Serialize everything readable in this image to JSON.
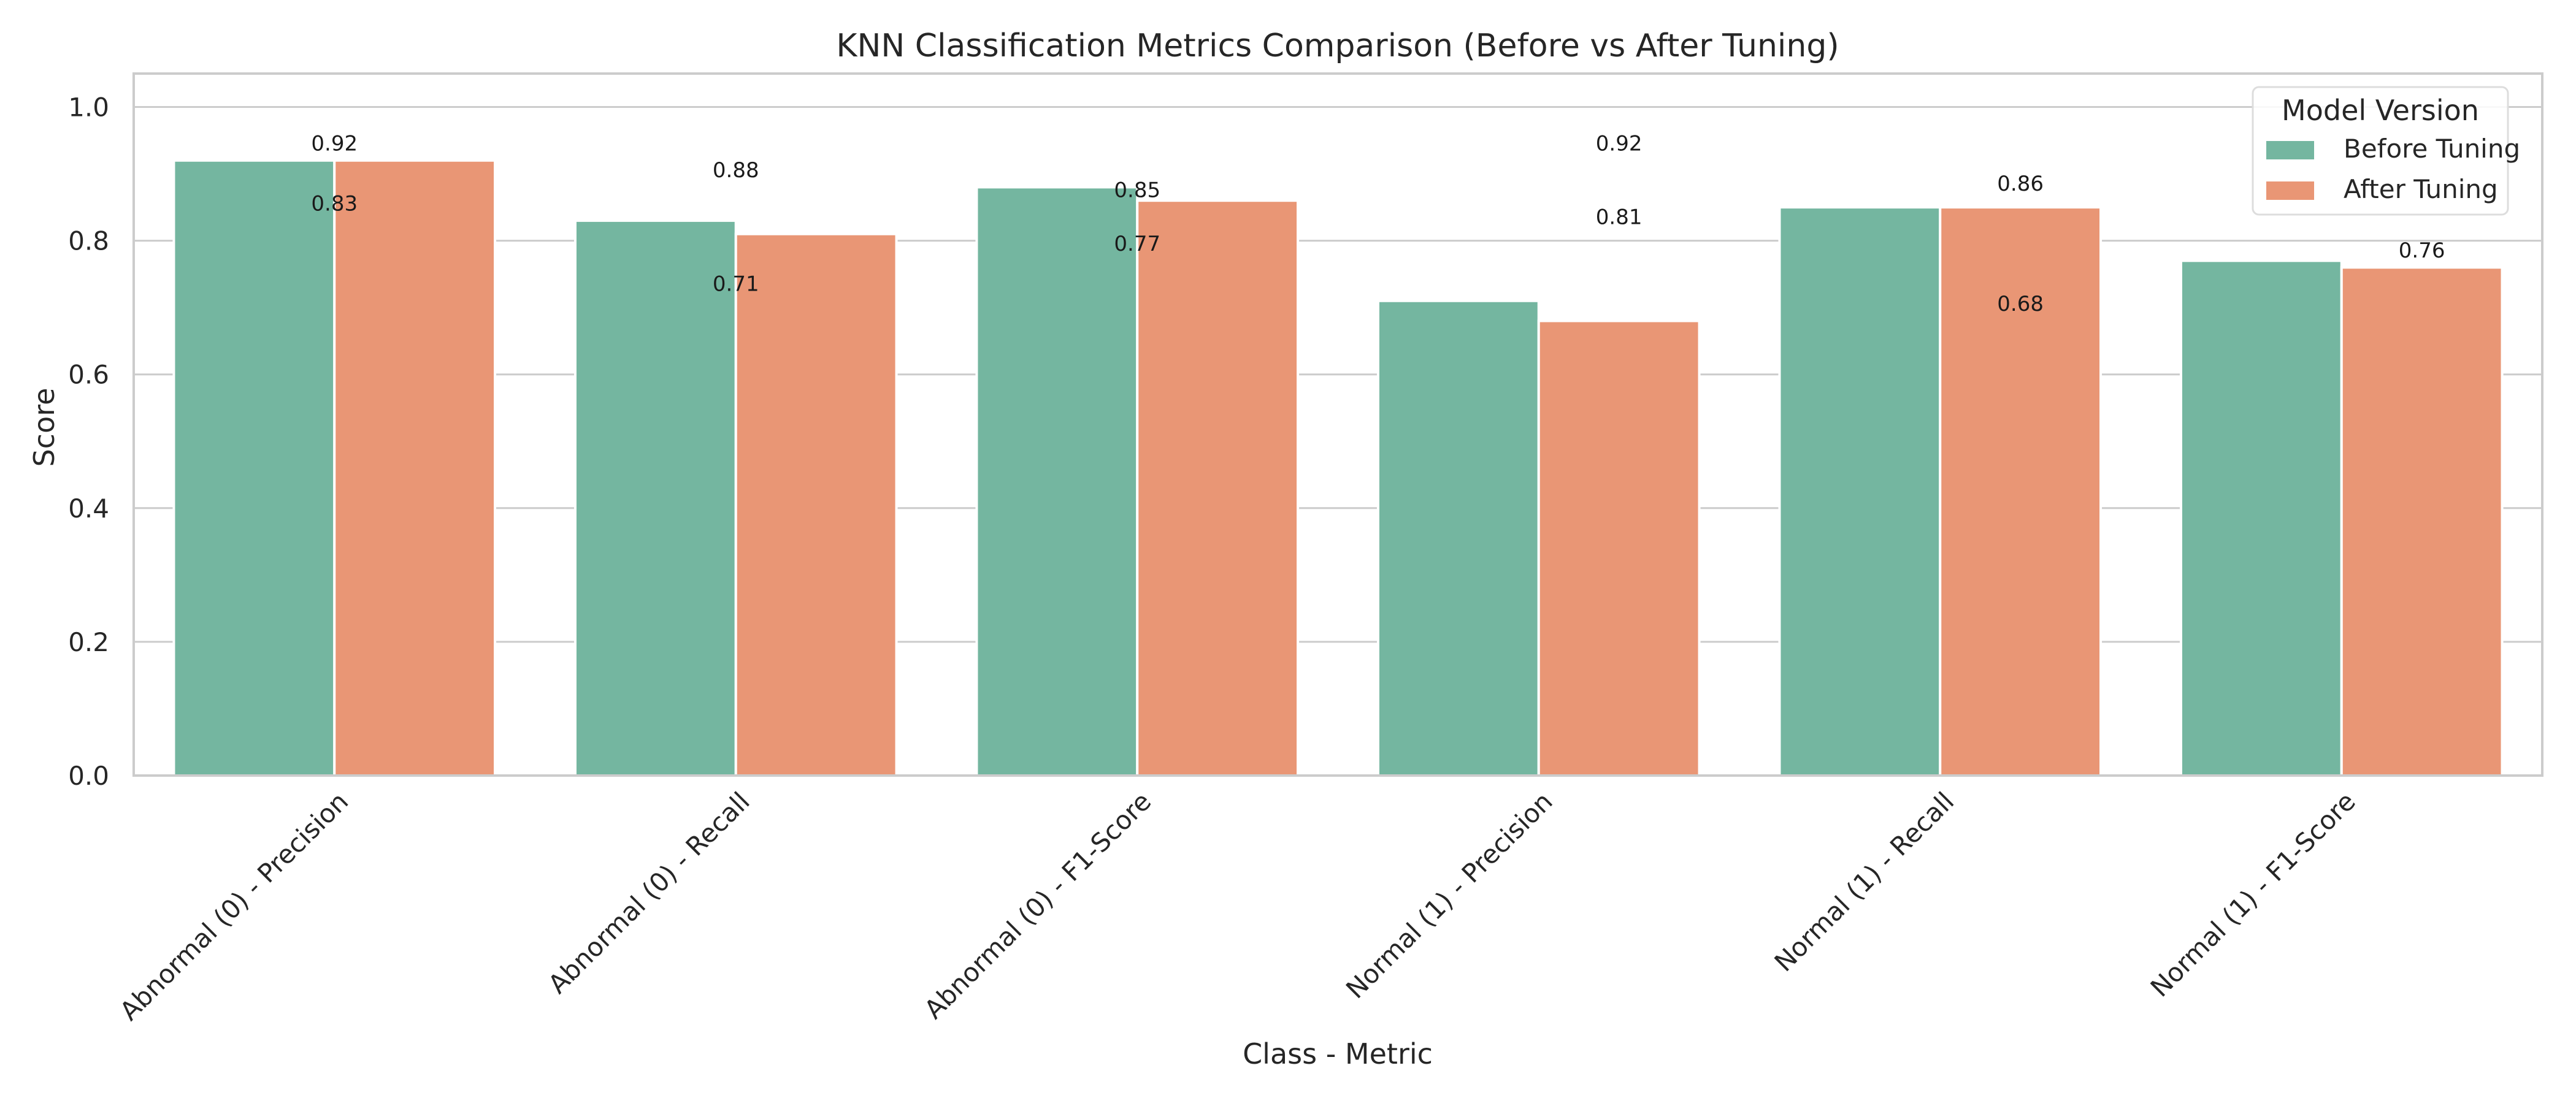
{
  "chart_data": {
    "type": "bar",
    "title": "KNN Classification Metrics Comparison (Before vs After Tuning)",
    "xlabel": "Class - Metric",
    "ylabel": "Score",
    "ylim": [
      0,
      1.05
    ],
    "yticks": [
      0.0,
      0.2,
      0.4,
      0.6,
      0.8,
      1.0
    ],
    "ytick_labels": [
      "0.0",
      "0.2",
      "0.4",
      "0.6",
      "0.8",
      "1.0"
    ],
    "grid": true,
    "legend": {
      "title": "Model Version",
      "placement": "top-right"
    },
    "categories": [
      "Abnormal (0) - Precision",
      "Abnormal (0) - Recall",
      "Abnormal (0) - F1-Score",
      "Normal (1) - Precision",
      "Normal (1) - Recall",
      "Normal (1) - F1-Score"
    ],
    "series": [
      {
        "name": "Before Tuning",
        "color": "#74b6a0",
        "values": [
          0.92,
          0.83,
          0.88,
          0.71,
          0.85,
          0.77
        ]
      },
      {
        "name": "After Tuning",
        "color": "#e99675",
        "values": [
          0.92,
          0.81,
          0.86,
          0.68,
          0.85,
          0.76
        ]
      }
    ],
    "annotations": [
      {
        "text": "0.92",
        "x": 0,
        "y": 0.935
      },
      {
        "text": "0.83",
        "x": 0,
        "y": 0.845
      },
      {
        "text": "0.88",
        "x": 1,
        "y": 0.895
      },
      {
        "text": "0.71",
        "x": 1,
        "y": 0.725
      },
      {
        "text": "0.85",
        "x": 2,
        "y": 0.865
      },
      {
        "text": "0.77",
        "x": 2,
        "y": 0.785
      },
      {
        "text": "0.92",
        "x": 3.2,
        "y": 0.935
      },
      {
        "text": "0.81",
        "x": 3.2,
        "y": 0.825
      },
      {
        "text": "0.86",
        "x": 4.2,
        "y": 0.875
      },
      {
        "text": "0.68",
        "x": 4.2,
        "y": 0.695
      },
      {
        "text": "0.76",
        "x": 5.2,
        "y": 0.775
      },
      {
        "text": "0.76",
        "x": 5.7,
        "y": 0.875
      }
    ]
  }
}
